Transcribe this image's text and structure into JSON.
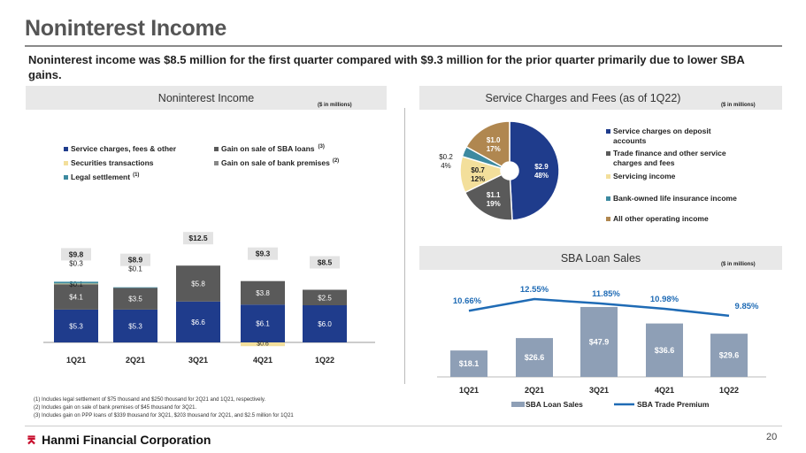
{
  "page": {
    "title": "Noninterest Income",
    "subtitle": "Noninterest income was $8.5 million for the first quarter compared with $9.3 million for the prior quarter primarily due to lower SBA gains.",
    "page_number": "20",
    "logo_text": "Hanmi Financial Corporation"
  },
  "footnotes": [
    "(1)    Includes legal settlement of $75 thousand and $250 thousand for 2Q21 and 1Q21, respectively.",
    "(2)    Includes gain on sale of bank premises of $45 thousand for 3Q21.",
    "(3)    Includes gain on PPP loans of $339 thousand for 3Q21, $203 thousand for 2Q21, and $2.5 million for 1Q21"
  ],
  "colors": {
    "navy": "#1f3c8c",
    "gray": "#5a5a5a",
    "yellow": "#f3df9b",
    "teal": "#3d8aa0",
    "tan": "#b08750",
    "line_blue": "#1f6bb5",
    "sba_bar": "#8e9fb6"
  },
  "chart_data": [
    {
      "type": "bar",
      "stacked": true,
      "title": "Noninterest Income",
      "unit_note": "($ in millions)",
      "categories": [
        "1Q21",
        "2Q21",
        "3Q21",
        "4Q21",
        "1Q22"
      ],
      "series": [
        {
          "name": "Service charges, fees & other",
          "color": "#1f3c8c",
          "values": [
            5.3,
            5.3,
            6.6,
            6.1,
            6.0
          ],
          "labels": [
            "$5.3",
            "$5.3",
            "$6.6",
            "$6.1",
            "$6.0"
          ]
        },
        {
          "name": "Gain on sale of SBA loans",
          "superscript": "(3)",
          "color": "#5a5a5a",
          "values": [
            4.1,
            3.5,
            5.8,
            3.8,
            2.5
          ],
          "labels": [
            "$4.1",
            "$3.5",
            "$5.8",
            "$3.8",
            "$2.5"
          ]
        },
        {
          "name": "Securities transactions",
          "color": "#f3df9b",
          "values": [
            0.1,
            0,
            0,
            -0.6,
            0
          ],
          "labels": [
            "$0.1",
            "",
            "",
            "$0.6",
            ""
          ]
        },
        {
          "name": "Gain on sale of bank premises",
          "superscript": "(2)",
          "color": "#888888",
          "values": [
            0,
            0,
            0,
            0,
            0
          ],
          "labels": [
            "",
            "",
            "",
            "",
            ""
          ]
        },
        {
          "name": "Legal settlement",
          "superscript": "(1)",
          "color": "#3d8aa0",
          "values": [
            0.3,
            0.1,
            0,
            0,
            0
          ],
          "labels": [
            "$0.3",
            "$0.1",
            "",
            "",
            ""
          ]
        }
      ],
      "totals": [
        "$9.8",
        "$8.9",
        "$12.5",
        "$9.3",
        "$8.5"
      ],
      "ylim": [
        -0.8,
        14
      ]
    },
    {
      "type": "pie",
      "title": "Service Charges and Fees (as of 1Q22)",
      "unit_note": "($ in millions)",
      "slices": [
        {
          "name": "Service charges on deposit accounts",
          "value": 2.9,
          "percent": 48,
          "label": "$2.9",
          "pct_label": "48%",
          "color": "#1f3c8c"
        },
        {
          "name": "Trade finance and other service charges and fees",
          "value": 1.1,
          "percent": 19,
          "label": "$1.1",
          "pct_label": "19%",
          "color": "#5a5a5a"
        },
        {
          "name": "Servicing income",
          "value": 0.7,
          "percent": 12,
          "label": "$0.7",
          "pct_label": "12%",
          "color": "#f3df9b"
        },
        {
          "name": "Bank-owned life insurance income",
          "value": 0.2,
          "percent": 4,
          "label": "$0.2",
          "pct_label": "4%",
          "color": "#3d8aa0"
        },
        {
          "name": "All other operating income",
          "value": 1.0,
          "percent": 17,
          "label": "$1.0",
          "pct_label": "17%",
          "color": "#b08750"
        }
      ],
      "legend_lines": [
        [
          "Service charges on deposit",
          "accounts"
        ],
        [
          "Trade finance and other service",
          "charges and fees"
        ],
        [
          "Servicing income"
        ],
        [
          "Bank-owned life insurance income"
        ],
        [
          "All other operating income"
        ]
      ]
    },
    {
      "type": "bar+line",
      "title": "SBA Loan Sales",
      "unit_note": "($ in millions)",
      "categories": [
        "1Q21",
        "2Q21",
        "3Q21",
        "4Q21",
        "1Q22"
      ],
      "bars": {
        "name": "SBA Loan Sales",
        "values": [
          18.1,
          26.6,
          47.9,
          36.6,
          29.6
        ],
        "labels": [
          "$18.1",
          "$26.6",
          "$47.9",
          "$36.6",
          "$29.6"
        ]
      },
      "line": {
        "name": "SBA Trade Premium",
        "values": [
          10.66,
          12.55,
          11.85,
          10.98,
          9.85
        ],
        "labels": [
          "10.66%",
          "12.55%",
          "11.85%",
          "10.98%",
          "9.85%"
        ]
      }
    }
  ]
}
